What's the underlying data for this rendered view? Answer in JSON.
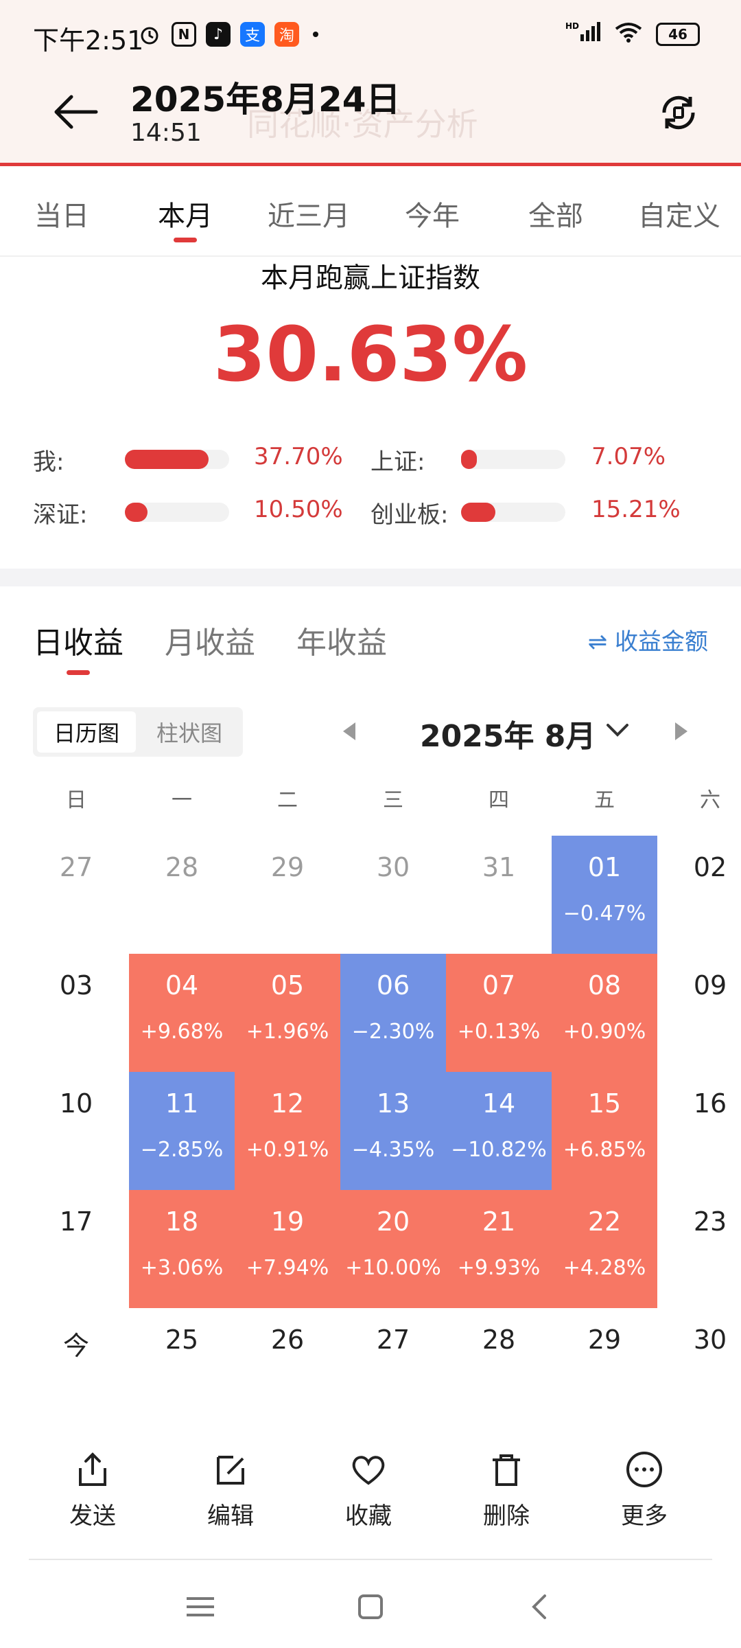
{
  "status_bar": {
    "time": "下午2:51",
    "battery": "46",
    "app_icons": [
      "alarm-icon",
      "nfc-icon",
      "tiktok-icon",
      "alipay-icon",
      "taobao-icon"
    ]
  },
  "header": {
    "title": "2025年8月24日",
    "subtitle": "14:51",
    "ghost_text": "同花顺·资产分析"
  },
  "period_tabs": [
    {
      "label": "当日",
      "active": false
    },
    {
      "label": "本月",
      "active": true
    },
    {
      "label": "近三月",
      "active": false
    },
    {
      "label": "今年",
      "active": false
    },
    {
      "label": "全部",
      "active": false
    },
    {
      "label": "自定义",
      "active": false
    }
  ],
  "comparison": {
    "title": "本月跑赢上证指数",
    "value": "30.63%",
    "items": [
      {
        "label": "我:",
        "value": "37.70%",
        "fill": 0.8
      },
      {
        "label": "上证:",
        "value": "7.07%",
        "fill": 0.15
      },
      {
        "label": "深证:",
        "value": "10.50%",
        "fill": 0.22
      },
      {
        "label": "创业板:",
        "value": "15.21%",
        "fill": 0.33
      }
    ]
  },
  "earnings_tabs": [
    {
      "label": "日收益",
      "active": true
    },
    {
      "label": "月收益",
      "active": false
    },
    {
      "label": "年收益",
      "active": false
    }
  ],
  "amount_link": "⇌ 收益金额",
  "view_toggle": [
    {
      "label": "日历图",
      "active": true
    },
    {
      "label": "柱状图",
      "active": false
    }
  ],
  "month_label": "2025年 8月",
  "weekdays": [
    "日",
    "一",
    "二",
    "三",
    "四",
    "五",
    "六"
  ],
  "calendar_rows": [
    [
      {
        "day": "27",
        "state": "gray"
      },
      {
        "day": "28",
        "state": "gray"
      },
      {
        "day": "29",
        "state": "gray"
      },
      {
        "day": "30",
        "state": "gray"
      },
      {
        "day": "31",
        "state": "gray"
      },
      {
        "day": "01",
        "state": "blue",
        "pct": "−0.47%"
      },
      {
        "day": "02",
        "state": "plain"
      }
    ],
    [
      {
        "day": "03",
        "state": "plain"
      },
      {
        "day": "04",
        "state": "red",
        "pct": "+9.68%"
      },
      {
        "day": "05",
        "state": "red",
        "pct": "+1.96%"
      },
      {
        "day": "06",
        "state": "blue",
        "pct": "−2.30%"
      },
      {
        "day": "07",
        "state": "red",
        "pct": "+0.13%"
      },
      {
        "day": "08",
        "state": "red",
        "pct": "+0.90%"
      },
      {
        "day": "09",
        "state": "plain"
      }
    ],
    [
      {
        "day": "10",
        "state": "plain"
      },
      {
        "day": "11",
        "state": "blue",
        "pct": "−2.85%"
      },
      {
        "day": "12",
        "state": "red",
        "pct": "+0.91%"
      },
      {
        "day": "13",
        "state": "blue",
        "pct": "−4.35%"
      },
      {
        "day": "14",
        "state": "blue",
        "pct": "−10.82%"
      },
      {
        "day": "15",
        "state": "red",
        "pct": "+6.85%"
      },
      {
        "day": "16",
        "state": "plain"
      }
    ],
    [
      {
        "day": "17",
        "state": "plain"
      },
      {
        "day": "18",
        "state": "red",
        "pct": "+3.06%"
      },
      {
        "day": "19",
        "state": "red",
        "pct": "+7.94%"
      },
      {
        "day": "20",
        "state": "red",
        "pct": "+10.00%"
      },
      {
        "day": "21",
        "state": "red",
        "pct": "+9.93%"
      },
      {
        "day": "22",
        "state": "red",
        "pct": "+4.28%"
      },
      {
        "day": "23",
        "state": "plain"
      }
    ],
    [
      {
        "day": "今",
        "state": "plain"
      },
      {
        "day": "25",
        "state": "plain"
      },
      {
        "day": "26",
        "state": "plain"
      },
      {
        "day": "27",
        "state": "plain"
      },
      {
        "day": "28",
        "state": "plain"
      },
      {
        "day": "29",
        "state": "plain"
      },
      {
        "day": "30",
        "state": "plain"
      }
    ]
  ],
  "actions": [
    {
      "label": "发送",
      "icon": "share-icon"
    },
    {
      "label": "编辑",
      "icon": "edit-icon"
    },
    {
      "label": "收藏",
      "icon": "heart-icon"
    },
    {
      "label": "删除",
      "icon": "trash-icon"
    },
    {
      "label": "更多",
      "icon": "more-icon"
    }
  ],
  "colors": {
    "accent": "#e03a3a",
    "gain": "#f77764",
    "loss": "#7292e4",
    "link": "#3a7fd0"
  }
}
